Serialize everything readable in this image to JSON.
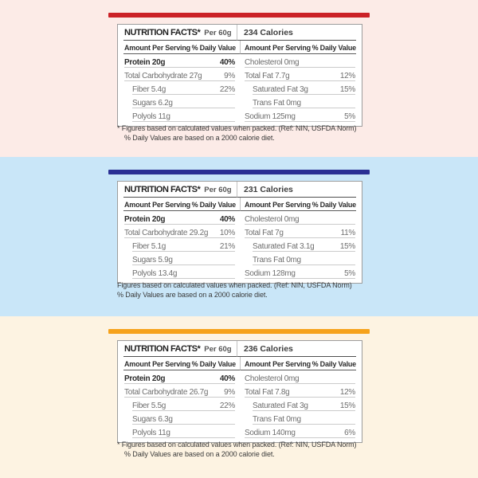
{
  "panels": [
    {
      "background_color": "#fcebe7",
      "accent_color": "#cb2127",
      "title": "NUTRITION FACTS*",
      "serving": "Per 60g",
      "calories": "234 Calories",
      "amount_header": "Amount Per Serving",
      "daily_value_header": "% Daily Value",
      "left_rows": [
        {
          "label": "Protein 20g",
          "value": "40%",
          "bold": true,
          "indent": false
        },
        {
          "label": "Total Carbohydrate 27g",
          "value": "9%",
          "bold": false,
          "indent": false
        },
        {
          "label": "Fiber 5.4g",
          "value": "22%",
          "bold": false,
          "indent": true
        },
        {
          "label": "Sugars 6.2g",
          "value": "",
          "bold": false,
          "indent": true
        },
        {
          "label": "Polyols 11g",
          "value": "",
          "bold": false,
          "indent": true
        }
      ],
      "right_rows": [
        {
          "label": "Cholesterol 0mg",
          "value": "",
          "bold": false,
          "indent": false
        },
        {
          "label": "Total Fat 7.7g",
          "value": "12%",
          "bold": false,
          "indent": false
        },
        {
          "label": "Saturated Fat 3g",
          "value": "15%",
          "bold": false,
          "indent": true
        },
        {
          "label": "Trans Fat 0mg",
          "value": "",
          "bold": false,
          "indent": true
        },
        {
          "label": "Sodium 125mg",
          "value": "5%",
          "bold": false,
          "indent": false
        }
      ],
      "footnote_line1": "* Figures based on calculated values when packed. (Ref: NIN, USFDA Norm)",
      "footnote_line2": "% Daily Values are based on a 2000 calorie diet."
    },
    {
      "background_color": "#c9e6f8",
      "accent_color": "#2b3094",
      "title": "NUTRITION FACTS*",
      "serving": "Per 60g",
      "calories": "231 Calories",
      "amount_header": "Amount Per Serving",
      "daily_value_header": "% Daily Value",
      "left_rows": [
        {
          "label": "Protein 20g",
          "value": "40%",
          "bold": true,
          "indent": false
        },
        {
          "label": "Total Carbohydrate 29.2g",
          "value": "10%",
          "bold": false,
          "indent": false
        },
        {
          "label": "Fiber 5.1g",
          "value": "21%",
          "bold": false,
          "indent": true
        },
        {
          "label": "Sugars 5.9g",
          "value": "",
          "bold": false,
          "indent": true
        },
        {
          "label": "Polyols 13.4g",
          "value": "",
          "bold": false,
          "indent": true
        }
      ],
      "right_rows": [
        {
          "label": "Cholesterol 0mg",
          "value": "",
          "bold": false,
          "indent": false
        },
        {
          "label": "Total Fat 7g",
          "value": "11%",
          "bold": false,
          "indent": false
        },
        {
          "label": "Saturated Fat 3.1g",
          "value": "15%",
          "bold": false,
          "indent": true
        },
        {
          "label": "Trans Fat 0mg",
          "value": "",
          "bold": false,
          "indent": true
        },
        {
          "label": "Sodium 128mg",
          "value": "5%",
          "bold": false,
          "indent": false
        }
      ],
      "footnote_line1": "Figures based on calculated values when packed. (Ref: NIN, USFDA Norm)",
      "footnote_line2": "% Daily Values are based on a 2000 calorie diet."
    },
    {
      "background_color": "#fdf3e2",
      "accent_color": "#f6a21b",
      "title": "NUTRITION FACTS*",
      "serving": "Per 60g",
      "calories": "236 Calories",
      "amount_header": "Amount Per Serving",
      "daily_value_header": "% Daily Value",
      "left_rows": [
        {
          "label": "Protein 20g",
          "value": "40%",
          "bold": true,
          "indent": false
        },
        {
          "label": "Total Carbohydrate 26.7g",
          "value": "9%",
          "bold": false,
          "indent": false
        },
        {
          "label": "Fiber 5.5g",
          "value": "22%",
          "bold": false,
          "indent": true
        },
        {
          "label": "Sugars 6.3g",
          "value": "",
          "bold": false,
          "indent": true
        },
        {
          "label": "Polyols 11g",
          "value": "",
          "bold": false,
          "indent": true
        }
      ],
      "right_rows": [
        {
          "label": "Cholesterol 0mg",
          "value": "",
          "bold": false,
          "indent": false
        },
        {
          "label": "Total Fat 7.8g",
          "value": "12%",
          "bold": false,
          "indent": false
        },
        {
          "label": "Saturated Fat 3g",
          "value": "15%",
          "bold": false,
          "indent": true
        },
        {
          "label": "Trans Fat 0mg",
          "value": "",
          "bold": false,
          "indent": true
        },
        {
          "label": "Sodium 140mg",
          "value": "6%",
          "bold": false,
          "indent": false
        }
      ],
      "footnote_line1": "* Figures based on calculated values when packed. (Ref: NIN, USFDA Norm)",
      "footnote_line2": "% Daily Values are based on a 2000 calorie diet."
    }
  ]
}
